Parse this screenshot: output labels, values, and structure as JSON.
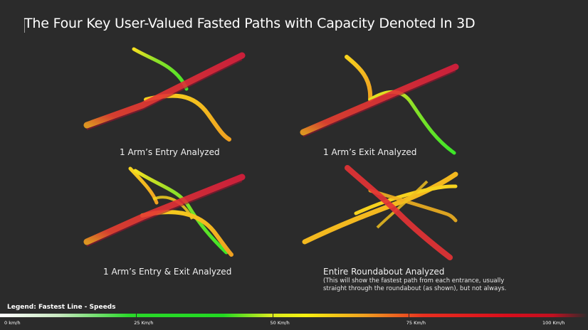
{
  "title": "The Four Key User-Valued Fasted Paths with Capacity Denoted In 3D",
  "panels": [
    {
      "caption": "1 Arm’s Entry Analyzed"
    },
    {
      "caption": "1 Arm’s Exit Analyzed"
    },
    {
      "caption": "1 Arm’s Entry & Exit Analyzed"
    },
    {
      "caption": "Entire Roundabout  Analyzed",
      "note": "(This will show the fastest path from each entrance, usually straight through the roundabout (as shown), but not always."
    }
  ],
  "legend": {
    "title": "Legend: Fastest Line - Speeds",
    "ticks": [
      {
        "label": "0 km/h",
        "speed": 0
      },
      {
        "label": "25 Km/h",
        "speed": 25
      },
      {
        "label": "50 Km/h",
        "speed": 50
      },
      {
        "label": "75 Km/h",
        "speed": 75
      },
      {
        "label": "100 Km/h",
        "speed": 100
      }
    ]
  },
  "colors": {
    "background": "#2b2b2b",
    "red": "#dc1e3c",
    "orange": "#f0a020",
    "yellow": "#f6d21e",
    "green": "#3ce628"
  }
}
